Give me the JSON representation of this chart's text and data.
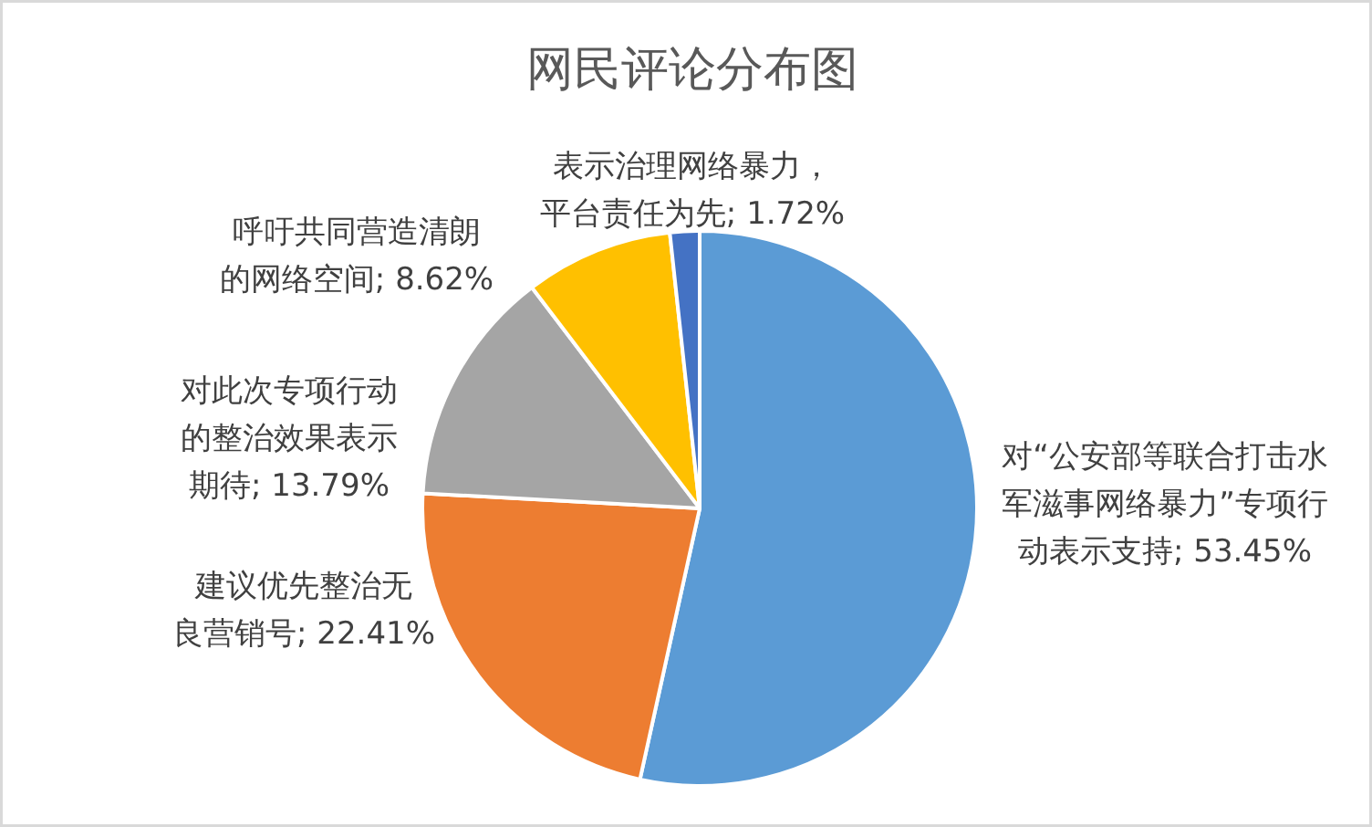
{
  "chart_data": {
    "type": "pie",
    "title": "网民评论分布图",
    "categories": [
      "对“公安部等联合打击水军滋事网络暴力”专项行动表示支持",
      "建议优先整治无良营销号",
      "对此次专项行动的整治效果表示期待",
      "呼吁共同营造清朗的网络空间",
      "表示治理网络暴力，平台责任为先"
    ],
    "values": [
      53.45,
      22.41,
      13.79,
      8.62,
      1.72
    ],
    "value_labels": [
      "53.45%",
      "22.41%",
      "13.79%",
      "8.62%",
      "1.72%"
    ],
    "colors": [
      "#5b9bd5",
      "#ed7d31",
      "#a5a5a5",
      "#ffc000",
      "#4472c4"
    ]
  }
}
